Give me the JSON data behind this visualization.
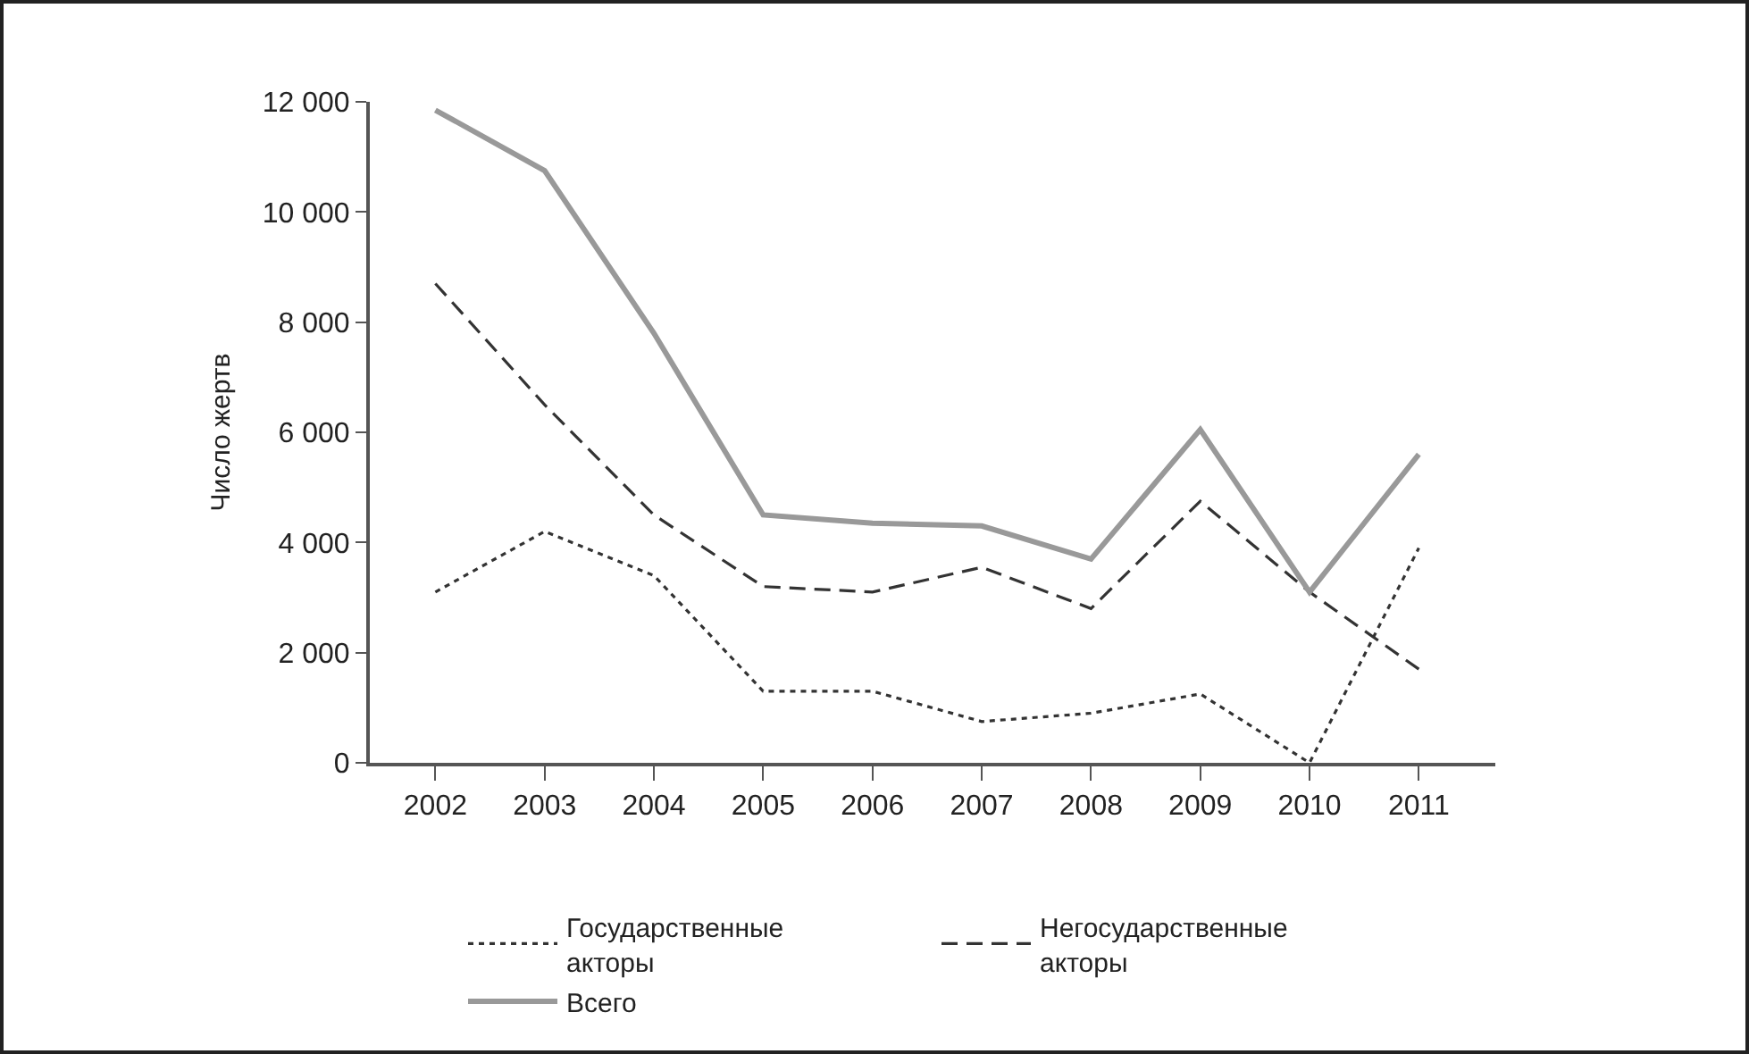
{
  "chart_data": {
    "type": "line",
    "ylabel": "Число жертв",
    "categories": [
      "2002",
      "2003",
      "2004",
      "2005",
      "2006",
      "2007",
      "2008",
      "2009",
      "2010",
      "2011"
    ],
    "ylim": [
      0,
      12000
    ],
    "yticks": [
      0,
      {
        "value": 2000,
        "label": "2 000"
      },
      {
        "value": 4000,
        "label": "4 000"
      },
      {
        "value": 6000,
        "label": "6 000"
      },
      {
        "value": 8000,
        "label": "8 000"
      },
      {
        "value": 10000,
        "label": "10 000"
      },
      {
        "value": 12000,
        "label": "12 000"
      }
    ],
    "grid": false,
    "legend": "bottom",
    "marker": "none",
    "series": [
      {
        "name": "Государственные акторы",
        "color": "#333333",
        "line_style": "dotted",
        "values": [
          3100,
          4200,
          3400,
          1300,
          1300,
          750,
          900,
          1250,
          0,
          3900
        ]
      },
      {
        "name": "Негосударственные акторы",
        "color": "#333333",
        "line_style": "dashed",
        "values": [
          8700,
          6500,
          4500,
          3200,
          3100,
          3550,
          2800,
          4750,
          3100,
          1700
        ]
      },
      {
        "name": "Всего",
        "color": "#999999",
        "line_style": "solid",
        "values": [
          11850,
          10750,
          7800,
          4500,
          4350,
          4300,
          3700,
          6050,
          3100,
          5600
        ]
      }
    ]
  }
}
